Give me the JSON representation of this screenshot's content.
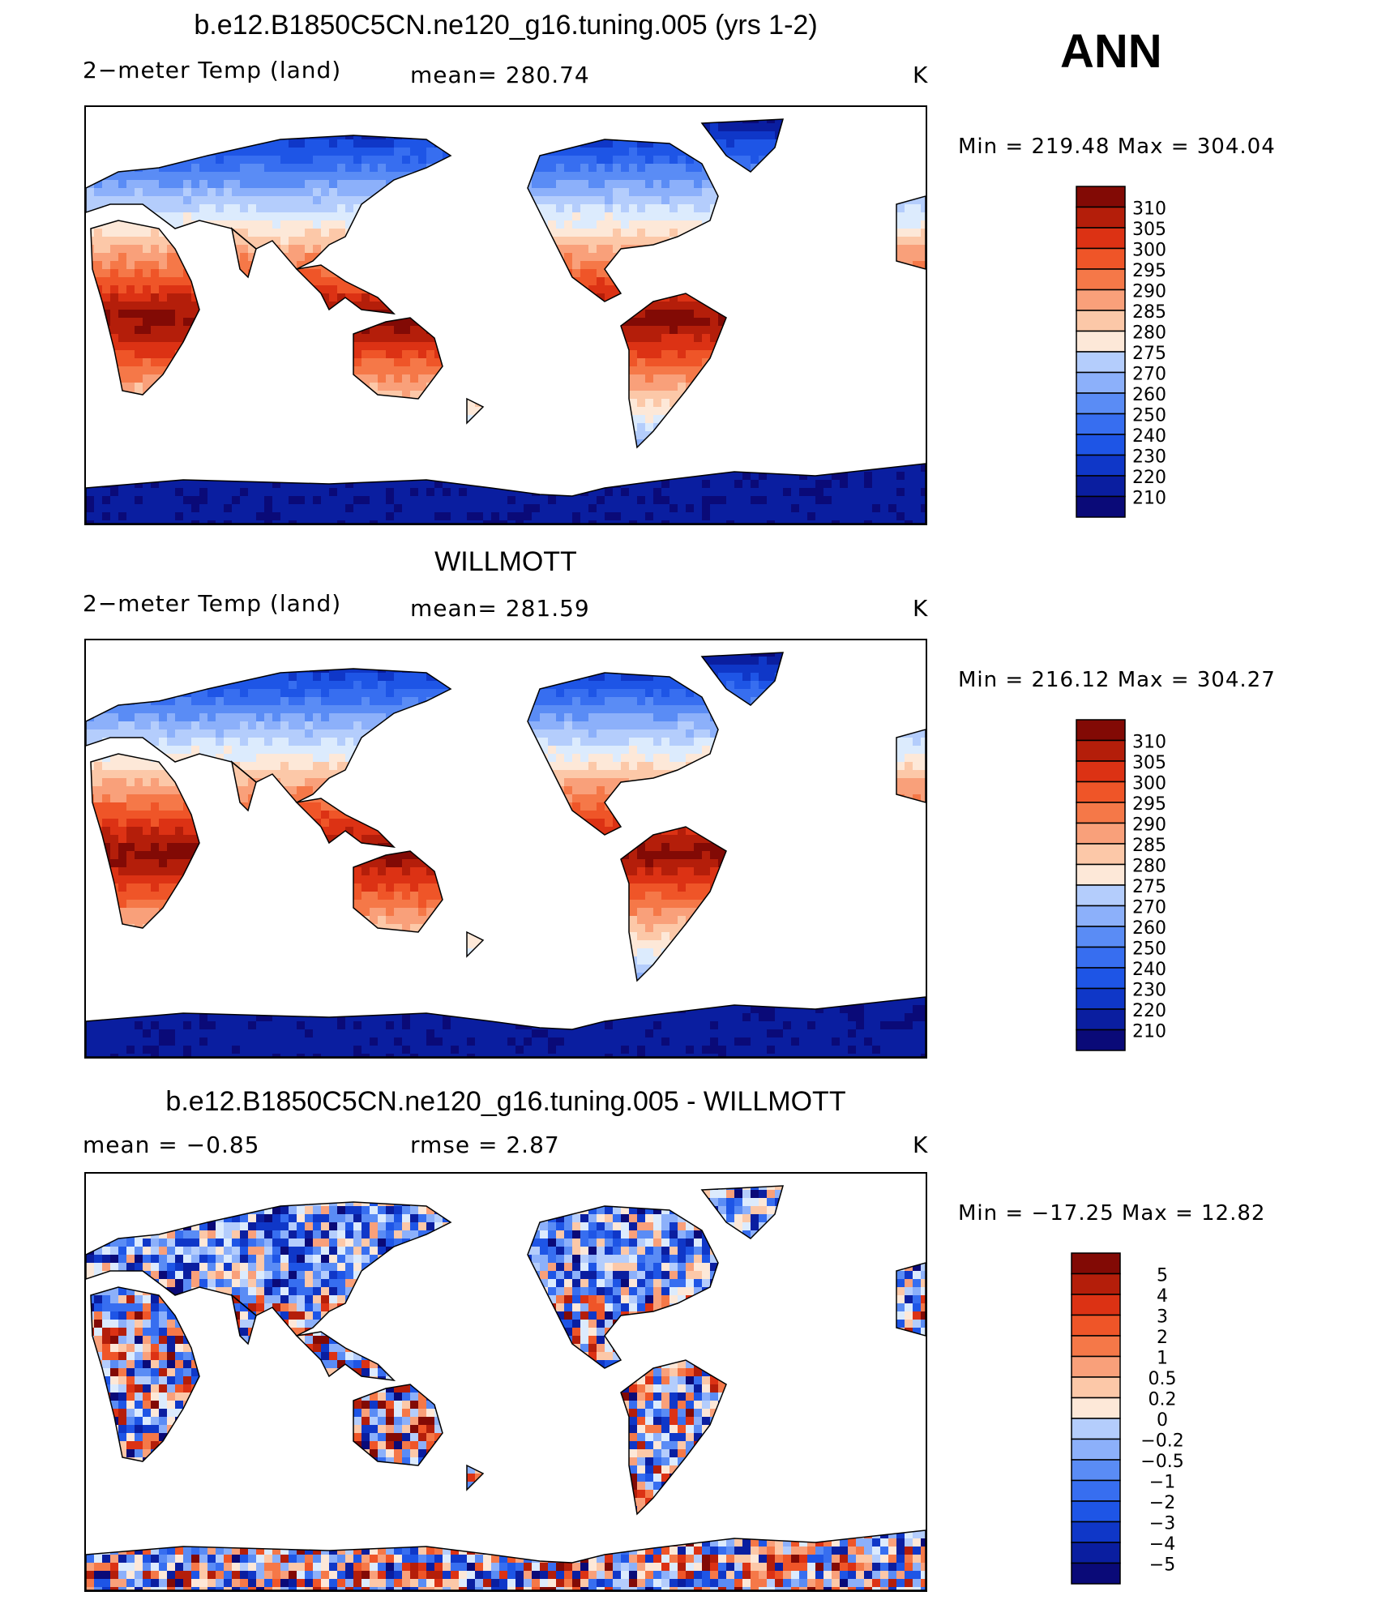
{
  "annotation": "ANN",
  "units": "K",
  "colors": {
    "temp_scale": [
      "#0a0a78",
      "#0a1ea0",
      "#0f37c8",
      "#1e55e6",
      "#376ef0",
      "#5a8cf5",
      "#8cb0fa",
      "#b4cdfc",
      "#dcebfd",
      "#fde8d8",
      "#fcc8a8",
      "#f9a07a",
      "#f57848",
      "#ef5528",
      "#dc3214",
      "#b41e0a",
      "#820a05"
    ],
    "diff_scale": [
      "#0a0a78",
      "#0a1ea0",
      "#0f37c8",
      "#1e55e6",
      "#376ef0",
      "#5a8cf5",
      "#8cb0fa",
      "#b4cdfc",
      "#dcebfd",
      "#fde8d8",
      "#fcc8a8",
      "#f9a07a",
      "#f57848",
      "#ef5528",
      "#dc3214",
      "#b41e0a",
      "#820a05"
    ]
  },
  "panels": [
    {
      "title": "b.e12.B1850C5CN.ne120_g16.tuning.005 (yrs 1-2)",
      "variable": "2−meter Temp (land)",
      "stat": "mean= 280.74",
      "units": "K",
      "min_max": "Min  =  219.48  Max  =  304.04"
    },
    {
      "title": "WILLMOTT",
      "variable": "2−meter Temp (land)",
      "stat": "mean= 281.59",
      "units": "K",
      "min_max": "Min  =  216.12  Max  =  304.27"
    },
    {
      "title": "b.e12.B1850C5CN.ne120_g16.tuning.005 - WILLMOTT",
      "variable": "mean  =     −0.85",
      "stat": "rmse  =      2.87",
      "units": "K",
      "min_max": "Min  =  −17.25  Max  =     12.82"
    }
  ],
  "chart_data": [
    {
      "type": "heatmap",
      "title": "b.e12.B1850C5CN.ne120_g16.tuning.005 (yrs 1-2)",
      "variable": "2-meter Temp (land)",
      "mean": 280.74,
      "min": 219.48,
      "max": 304.04,
      "colorbar_labels": [
        "310",
        "305",
        "300",
        "295",
        "290",
        "285",
        "280",
        "275",
        "270",
        "260",
        "250",
        "240",
        "230",
        "220",
        "210"
      ]
    },
    {
      "type": "heatmap",
      "title": "WILLMOTT",
      "variable": "2-meter Temp (land)",
      "mean": 281.59,
      "min": 216.12,
      "max": 304.27,
      "colorbar_labels": [
        "310",
        "305",
        "300",
        "295",
        "290",
        "285",
        "280",
        "275",
        "270",
        "260",
        "250",
        "240",
        "230",
        "220",
        "210"
      ]
    },
    {
      "type": "heatmap",
      "title": "b.e12.B1850C5CN.ne120_g16.tuning.005 - WILLMOTT",
      "mean": -0.85,
      "rmse": 2.87,
      "min": -17.25,
      "max": 12.82,
      "colorbar_labels": [
        "5",
        "4",
        "3",
        "2",
        "1",
        "0.5",
        "0.2",
        "0",
        "−0.2",
        "−0.5",
        "−1",
        "−2",
        "−3",
        "−4",
        "−5"
      ]
    }
  ]
}
